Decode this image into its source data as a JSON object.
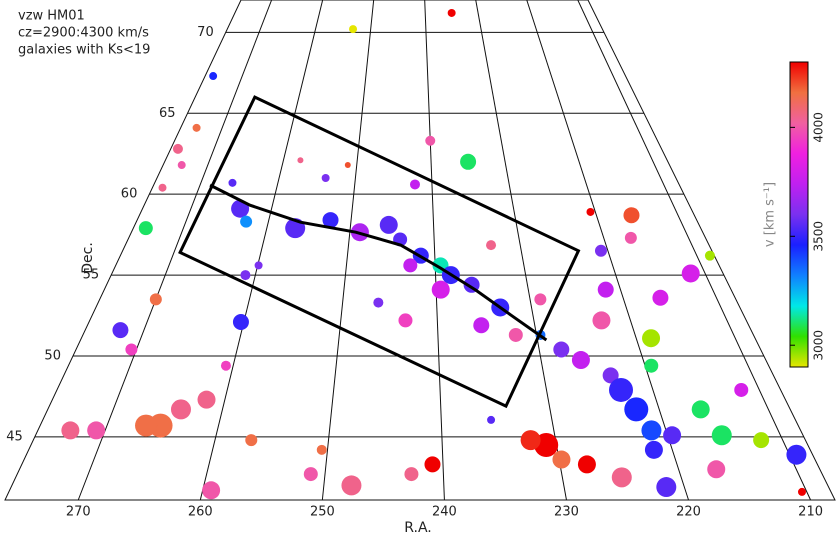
{
  "chart_data": {
    "type": "scatter",
    "annotations": [
      "vzw HM01",
      "cz=2900:4300 km/s",
      "galaxies with Ks<19"
    ],
    "xlabel": "R.A.",
    "ylabel": "Dec.",
    "xlim": [
      276,
      208
    ],
    "ylim": [
      41.1,
      72.0
    ],
    "xticks": [
      270,
      260,
      250,
      240,
      230,
      220,
      210
    ],
    "yticks": [
      45,
      50,
      55,
      60,
      65,
      70
    ],
    "grid": true,
    "x": [
      235.0,
      253.2,
      274.7,
      273.7,
      275.0,
      273.5,
      274.7,
      274.5,
      235.0,
      257.7,
      251.2,
      253.9,
      265.9,
      263.9,
      262.7,
      256.6,
      252.5,
      248.8,
      245.4,
      244.0,
      241.6,
      239.4,
      242.8,
      238.3,
      236.1,
      233.3,
      235.5,
      239.5,
      243.3,
      246.2,
      229.6,
      227.8,
      226.1,
      223.6,
      223.0,
      222.1,
      221.3,
      219.6,
      221.6,
      218.5,
      219.4,
      216.2,
      215.2,
      211.9,
      209.4,
      210.4,
      230.9,
      232.2,
      229.8,
      227.7,
      240.9,
      242.7,
      247.7,
      251.2,
      256.8,
      259.3,
      265.2,
      266.5,
      263.8,
      261.7,
      270.8,
      273.1,
      272.4,
      270.5,
      260.3,
      260.7,
      270.0,
      261.1,
      259.9,
      215.7,
      220.6,
      216.8,
      220.8,
      216.0,
      211.6,
      208.5,
      221.6,
      223.0,
      211.7,
      216.8,
      225.0,
      221.5,
      228.9,
      232.1,
      233.4,
      242.2,
      240.0,
      235.5,
      250.5
    ],
    "y": [
      71.2,
      70.2,
      67.3,
      64.1,
      62.8,
      61.8,
      60.4,
      57.9,
      62.0,
      62.1,
      61.8,
      61.0,
      60.7,
      59.1,
      58.3,
      57.9,
      58.4,
      57.65,
      58.1,
      57.2,
      56.2,
      55.6,
      55.6,
      55.0,
      54.4,
      53.0,
      51.9,
      54.1,
      52.2,
      53.3,
      51.3,
      50.4,
      49.75,
      48.8,
      47.9,
      46.7,
      45.4,
      45.1,
      44.2,
      51.1,
      49.4,
      46.7,
      45.1,
      44.8,
      43.9,
      41.6,
      44.5,
      44.8,
      43.6,
      43.3,
      43.3,
      42.7,
      42.0,
      42.7,
      44.8,
      41.7,
      45.7,
      45.7,
      46.7,
      47.3,
      45.4,
      45.4,
      51.6,
      50.4,
      52.1,
      49.4,
      53.5,
      55.0,
      55.6,
      58.7,
      58.9,
      57.3,
      56.5,
      53.6,
      55.1,
      56.2,
      54.1,
      52.2,
      47.9,
      43.0,
      42.5,
      41.9,
      53.5,
      51.3,
      56.85,
      60.6,
      63.3,
      46.05,
      44.2
    ],
    "v": [
      4300,
      2900,
      3450,
      4150,
      4050,
      4000,
      4050,
      3100,
      3100,
      4050,
      4200,
      3600,
      3550,
      3550,
      3300,
      3550,
      3500,
      3700,
      3550,
      3550,
      3500,
      3150,
      3750,
      3500,
      3550,
      3500,
      3750,
      3800,
      3950,
      3600,
      3350,
      3600,
      3750,
      3600,
      3500,
      3450,
      3400,
      3550,
      3500,
      2950,
      3100,
      3100,
      3100,
      2950,
      3500,
      4300,
      4300,
      4250,
      4150,
      4300,
      4300,
      4050,
      4050,
      4000,
      4150,
      4000,
      4150,
      4150,
      4050,
      4050,
      4000,
      4050,
      3550,
      3950,
      3500,
      3950,
      4150,
      3600,
      3600,
      4200,
      4300,
      4000,
      3600,
      3800,
      3800,
      2950,
      3750,
      4000,
      3800,
      4000,
      4050,
      3550,
      4000,
      4000,
      4050,
      3750,
      4000,
      3550,
      4150
    ],
    "size": [
      4,
      4,
      4,
      4,
      5,
      4,
      4,
      7,
      8,
      3,
      3,
      4,
      4,
      9,
      6,
      10,
      8,
      9,
      9,
      7,
      8,
      8,
      7,
      9,
      8,
      9,
      8,
      9,
      7,
      5,
      5,
      8,
      9,
      8,
      12,
      12,
      10,
      9,
      9,
      9,
      7,
      9,
      10,
      8,
      10,
      4,
      12,
      10,
      9,
      9,
      8,
      7,
      10,
      7,
      6,
      9,
      12,
      11,
      10,
      9,
      9,
      9,
      8,
      6,
      8,
      5,
      6,
      5,
      4,
      8,
      4,
      6,
      6,
      8,
      9,
      5,
      8,
      9,
      7,
      9,
      10,
      10,
      6,
      7,
      5,
      5,
      5,
      4,
      5
    ],
    "box": {
      "x": [
        266.8,
        223.4,
        234.0,
        269.3
      ],
      "y": [
        66.0,
        56.5,
        46.9,
        56.4
      ]
    },
    "ridge": {
      "x": [
        268.7,
        262.8,
        256.1,
        249.3,
        243.9,
        239.4,
        235.7,
        232.3,
        229.1
      ],
      "y": [
        60.56,
        59.32,
        58.27,
        57.65,
        56.85,
        55.43,
        54.07,
        52.53,
        50.99
      ]
    },
    "colorbar": {
      "label": "v [km s⁻¹]",
      "range": [
        2900,
        4300
      ],
      "ticks": [
        3000,
        3500,
        4000
      ],
      "colors": [
        "#e6e600",
        "#30e000",
        "#00e8e8",
        "#1080ff",
        "#1a20ff",
        "#7a30f0",
        "#c020f0",
        "#f020e0",
        "#f060a0",
        "#f07040",
        "#f00000"
      ]
    }
  }
}
